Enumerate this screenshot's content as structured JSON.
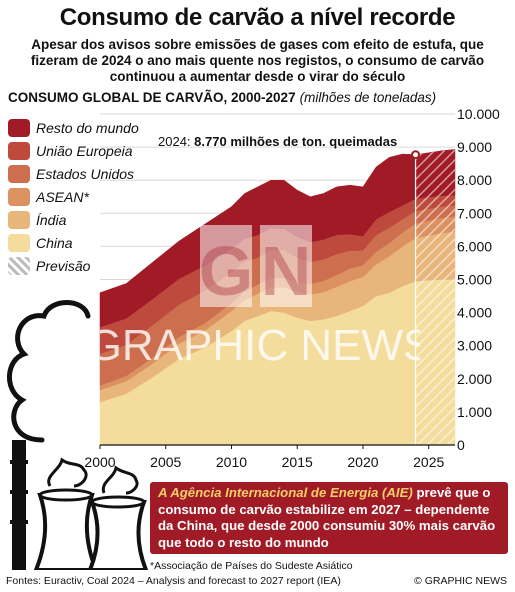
{
  "title": "Consumo de carvão a nível recorde",
  "subtitle": "Apesar dos avisos sobre emissões de gases com efeito de estufa, que fizeram de 2024 o ano mais quente nos registos, o consumo de carvão continuou a aumentar desde o virar do século",
  "chart_heading": "CONSUMO GLOBAL DE CARVÃO, 2000-2027",
  "chart_unit": "(milhões de toneladas)",
  "annotation": {
    "prefix": "2024:",
    "value": "8.770 milhões de ton. queimadas"
  },
  "info_box": {
    "highlight": "A Agência Internacional de Energia (AIE)",
    "text": " prevê que o consumo de carvão estabilize em 2027 – dependente da China, que desde 2000 consumiu 30% mais carvão que todo o resto do mundo"
  },
  "footnote": "*Associação de Países do Sudeste Asiático",
  "sources": "Fontes: Euractiv, Coal 2024 – Analysis and forecast to 2027 report (IEA)",
  "credit": "© GRAPHIC NEWS",
  "watermark": {
    "logo": "GN",
    "text": "GRAPHIC NEWS"
  },
  "colors": {
    "resto": "#a01b26",
    "ue": "#bd4a3c",
    "eua": "#cd6e4e",
    "asean": "#dc9161",
    "india": "#e8b57a",
    "china": "#f3dc9c",
    "forecast_hatch": "#ffffff",
    "marker": "#a01b26"
  },
  "chart_data": {
    "type": "area",
    "stacked": true,
    "x": [
      2000,
      2002,
      2004,
      2006,
      2008,
      2010,
      2011,
      2012,
      2013,
      2014,
      2015,
      2016,
      2017,
      2018,
      2019,
      2020,
      2021,
      2022,
      2023,
      2024,
      2025,
      2026,
      2027
    ],
    "forecast_from": 2024,
    "ylim": [
      0,
      10000
    ],
    "yticks": [
      0,
      1000,
      2000,
      3000,
      4000,
      5000,
      6000,
      7000,
      8000,
      9000,
      10000
    ],
    "ytick_labels": [
      "0",
      "1.000",
      "2.000",
      "3.000",
      "4.000",
      "5.000",
      "6.000",
      "7.000",
      "8.000",
      "9.000",
      "10.000"
    ],
    "xlim": [
      2000,
      2027
    ],
    "xticks": [
      2000,
      2005,
      2010,
      2015,
      2020,
      2025
    ],
    "xtick_labels": [
      "2000",
      "2005",
      "2010",
      "2015",
      "2020",
      "2025"
    ],
    "series": [
      {
        "name": "China",
        "key": "china",
        "values": [
          1300,
          1550,
          2050,
          2600,
          2950,
          3450,
          3750,
          3900,
          4050,
          4000,
          3850,
          3750,
          3800,
          3900,
          4050,
          4200,
          4500,
          4600,
          4800,
          4950,
          4980,
          5000,
          5000
        ]
      },
      {
        "name": "Índia",
        "key": "india",
        "values": [
          360,
          380,
          410,
          460,
          520,
          600,
          630,
          680,
          710,
          760,
          780,
          800,
          820,
          880,
          900,
          880,
          960,
          1100,
          1200,
          1300,
          1350,
          1400,
          1450
        ]
      },
      {
        "name": "ASEAN*",
        "key": "asean",
        "values": [
          140,
          160,
          180,
          200,
          220,
          240,
          260,
          270,
          280,
          290,
          300,
          320,
          340,
          360,
          380,
          360,
          380,
          400,
          420,
          440,
          450,
          460,
          460
        ]
      },
      {
        "name": "Estados Unidos",
        "key": "eua",
        "values": [
          960,
          940,
          980,
          980,
          980,
          930,
          900,
          810,
          850,
          840,
          730,
          660,
          650,
          630,
          540,
          440,
          500,
          470,
          400,
          380,
          360,
          340,
          330
        ]
      },
      {
        "name": "União Europeia",
        "key": "ue",
        "values": [
          800,
          800,
          790,
          780,
          760,
          700,
          690,
          690,
          670,
          640,
          630,
          600,
          600,
          580,
          500,
          430,
          480,
          470,
          420,
          370,
          350,
          330,
          310
        ]
      },
      {
        "name": "Resto do mundo",
        "key": "resto",
        "values": [
          1040,
          1050,
          1110,
          1140,
          1250,
          1280,
          1370,
          1450,
          1440,
          1470,
          1410,
          1370,
          1390,
          1450,
          1480,
          1490,
          1580,
          1650,
          1550,
          1330,
          1340,
          1360,
          1380
        ]
      }
    ],
    "legend": [
      "Resto do mundo",
      "União Europeia",
      "Estados Unidos",
      "ASEAN*",
      "Índia",
      "China",
      "Previsão"
    ],
    "legend_position": "top-left",
    "grid": true,
    "annotation_point": {
      "x": 2024,
      "y": 8770
    }
  }
}
